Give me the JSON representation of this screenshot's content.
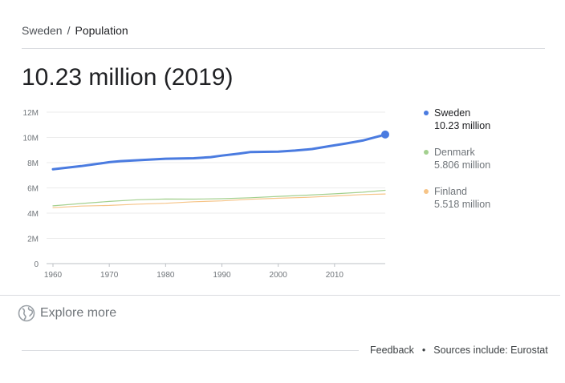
{
  "breadcrumb": {
    "country": "Sweden",
    "separator": "/",
    "topic": "Population"
  },
  "headline": "10.23 million (2019)",
  "chart_data": {
    "type": "line",
    "title": "",
    "xlabel": "",
    "ylabel": "",
    "xlim": [
      1960,
      2019
    ],
    "ylim": [
      0,
      12
    ],
    "x_ticks": [
      "1960",
      "1970",
      "1980",
      "1990",
      "2000",
      "2010"
    ],
    "y_ticks": [
      "0",
      "2M",
      "4M",
      "6M",
      "8M",
      "10M",
      "12M"
    ],
    "grid": true,
    "legend_position": "right",
    "series": [
      {
        "name": "Sweden",
        "value_label": "10.23 million",
        "color": "#4a7be0",
        "x": [
          1960,
          1965,
          1968,
          1970,
          1972,
          1975,
          1980,
          1985,
          1988,
          1990,
          1993,
          1995,
          2000,
          2003,
          2006,
          2009,
          2012,
          2015,
          2019
        ],
        "y": [
          7.48,
          7.73,
          7.91,
          8.04,
          8.12,
          8.19,
          8.31,
          8.35,
          8.44,
          8.56,
          8.72,
          8.84,
          8.87,
          8.96,
          9.08,
          9.3,
          9.52,
          9.75,
          10.23
        ]
      },
      {
        "name": "Denmark",
        "value_label": "5.806 million",
        "color": "#a3d08f",
        "x": [
          1960,
          1965,
          1970,
          1975,
          1980,
          1985,
          1990,
          1995,
          2000,
          2005,
          2010,
          2015,
          2019
        ],
        "y": [
          4.58,
          4.76,
          4.93,
          5.06,
          5.12,
          5.11,
          5.14,
          5.22,
          5.33,
          5.42,
          5.53,
          5.66,
          5.81
        ]
      },
      {
        "name": "Finland",
        "value_label": "5.518 million",
        "color": "#f6c487",
        "x": [
          1960,
          1965,
          1970,
          1975,
          1980,
          1985,
          1990,
          1995,
          2000,
          2005,
          2010,
          2015,
          2019
        ],
        "y": [
          4.43,
          4.56,
          4.61,
          4.71,
          4.78,
          4.9,
          4.97,
          5.1,
          5.18,
          5.25,
          5.36,
          5.47,
          5.52
        ]
      }
    ]
  },
  "explore": {
    "label": "Explore more",
    "icon": "globe-icon"
  },
  "footer": {
    "feedback": "Feedback",
    "dot": "•",
    "sources": "Sources include: Eurostat"
  }
}
